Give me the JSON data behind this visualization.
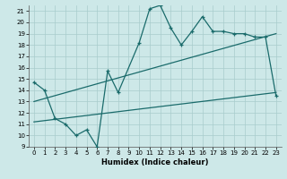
{
  "title": "",
  "xlabel": "Humidex (Indice chaleur)",
  "bg_color": "#cde8e8",
  "line_color": "#1a6b6b",
  "xlim": [
    -0.5,
    23.5
  ],
  "ylim": [
    9,
    21.5
  ],
  "yticks": [
    9,
    10,
    11,
    12,
    13,
    14,
    15,
    16,
    17,
    18,
    19,
    20,
    21
  ],
  "xticks": [
    0,
    1,
    2,
    3,
    4,
    5,
    6,
    7,
    8,
    9,
    10,
    11,
    12,
    13,
    14,
    15,
    16,
    17,
    18,
    19,
    20,
    21,
    22,
    23
  ],
  "data_x": [
    0,
    1,
    2,
    3,
    4,
    5,
    6,
    7,
    8,
    10,
    11,
    12,
    13,
    14,
    15,
    16,
    17,
    18,
    19,
    20,
    21,
    22,
    23
  ],
  "data_y": [
    14.7,
    14.0,
    11.5,
    11.0,
    10.0,
    10.5,
    9.0,
    15.7,
    13.8,
    18.2,
    21.2,
    21.5,
    19.5,
    18.0,
    19.2,
    20.5,
    19.2,
    19.2,
    19.0,
    19.0,
    18.7,
    18.7,
    13.5
  ],
  "line1_x": [
    0,
    23
  ],
  "line1_y": [
    13.0,
    19.0
  ],
  "line2_x": [
    0,
    23
  ],
  "line2_y": [
    11.2,
    13.8
  ],
  "grid_color": "#a8cccc",
  "tick_fontsize": 5,
  "xlabel_fontsize": 6
}
